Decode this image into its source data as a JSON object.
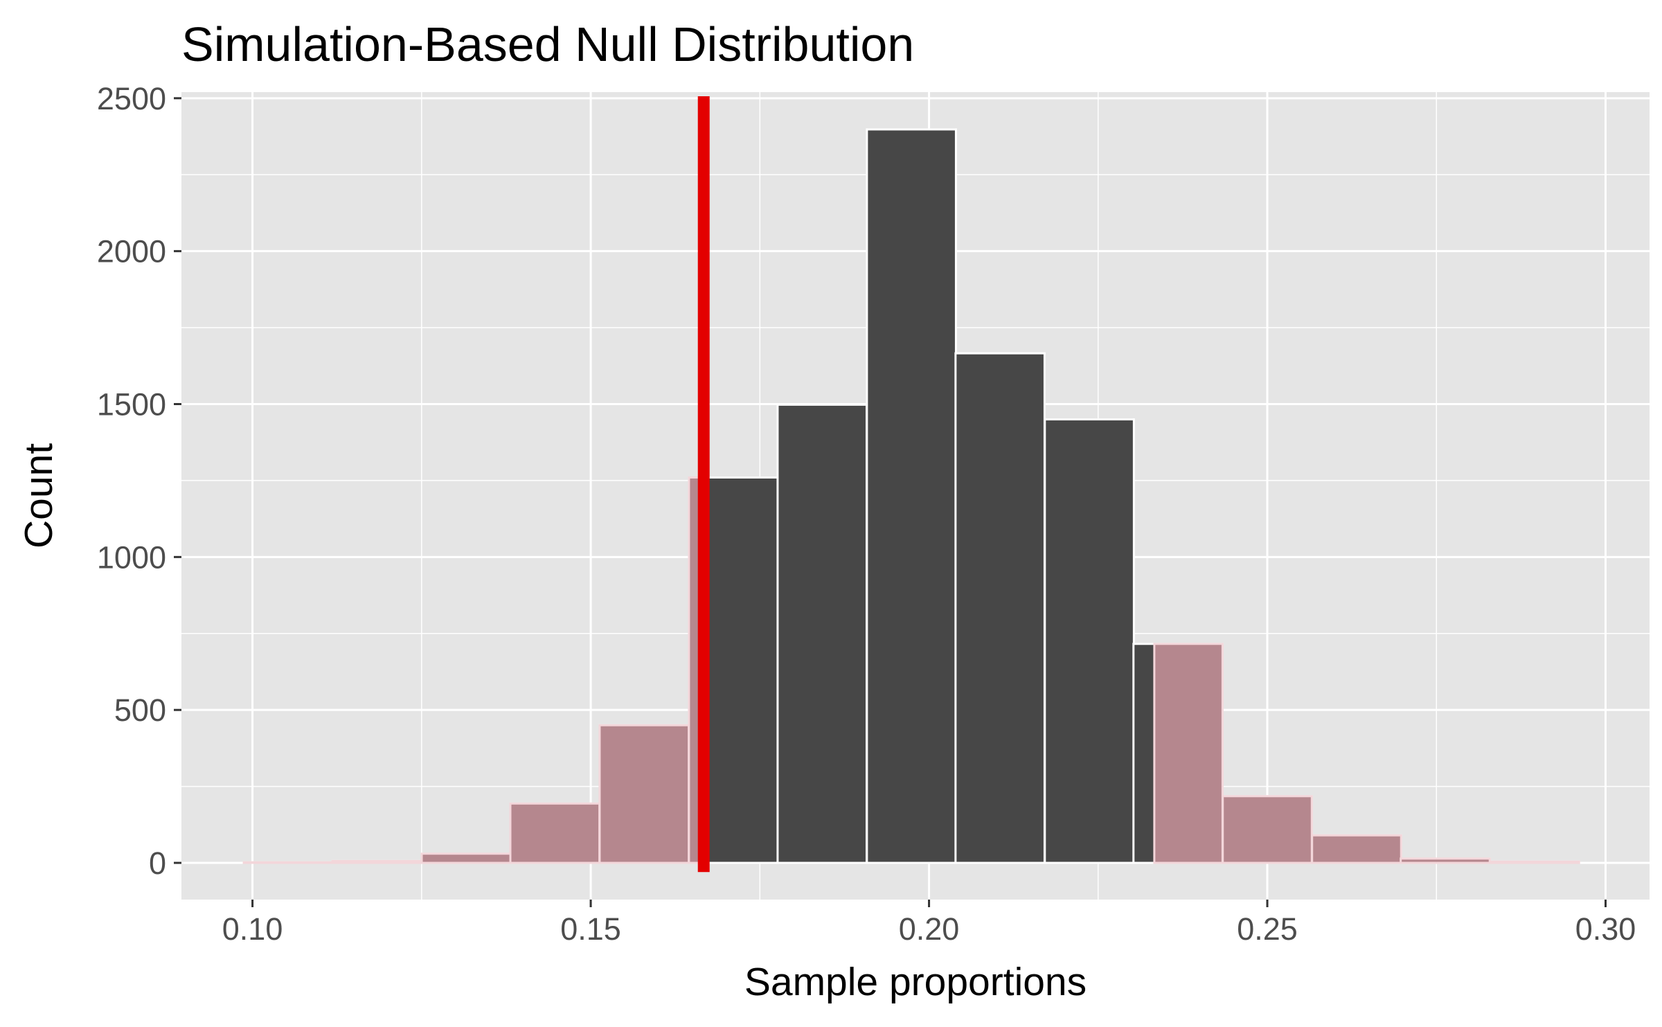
{
  "chart_data": {
    "type": "bar",
    "title": "Simulation-Based Null Distribution",
    "xlabel": "Sample proportions",
    "ylabel": "Count",
    "xlim": [
      0.0895,
      0.3065
    ],
    "ylim": [
      -120,
      2520
    ],
    "x_ticks": [
      0.1,
      0.15,
      0.2,
      0.25,
      0.3
    ],
    "x_tick_labels": [
      "0.10",
      "0.15",
      "0.20",
      "0.25",
      "0.30"
    ],
    "y_ticks": [
      0,
      500,
      1000,
      1500,
      2000,
      2500
    ],
    "y_tick_labels": [
      "0",
      "500",
      "1000",
      "1500",
      "2000",
      "2500"
    ],
    "grid": true,
    "bin_width": 0.01316,
    "bins": [
      {
        "x": 0.1053,
        "count": 2
      },
      {
        "x": 0.1184,
        "count": 6
      },
      {
        "x": 0.1316,
        "count": 30
      },
      {
        "x": 0.1447,
        "count": 194
      },
      {
        "x": 0.1579,
        "count": 450
      },
      {
        "x": 0.1711,
        "count": 1260
      },
      {
        "x": 0.1842,
        "count": 1498
      },
      {
        "x": 0.1974,
        "count": 2398
      },
      {
        "x": 0.2105,
        "count": 1666
      },
      {
        "x": 0.2237,
        "count": 1450
      },
      {
        "x": 0.2368,
        "count": 716
      },
      {
        "x": 0.25,
        "count": 218
      },
      {
        "x": 0.2632,
        "count": 90
      },
      {
        "x": 0.2763,
        "count": 14
      },
      {
        "x": 0.2895,
        "count": 4
      }
    ],
    "observed_stat": 0.1667,
    "shade_direction": "two-sided",
    "shade_lower": 0.1667,
    "shade_upper": 0.2333,
    "colors": {
      "panel": "#e5e5e5",
      "grid": "#ffffff",
      "bar_fill": "#474747",
      "bar_outline": "#ffffff",
      "shade_fill": "#b5878e",
      "shade_outline": "#f3d6da",
      "observed_line": "#e30000"
    }
  }
}
